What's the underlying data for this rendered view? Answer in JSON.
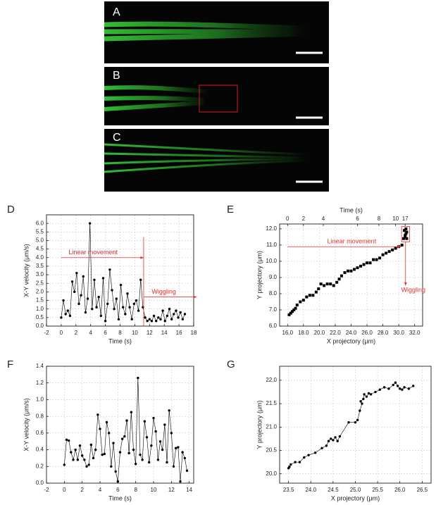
{
  "image_labels": [
    "A",
    "B",
    "C"
  ],
  "chart_data": [
    {
      "type": "line",
      "label": "D",
      "xlabel": "Time (s)",
      "ylabel": "X-Y velocity (μm/s)",
      "color": "#000000",
      "grid": true,
      "x": [
        0,
        0.3,
        0.6,
        0.9,
        1.2,
        1.5,
        1.8,
        2.1,
        2.4,
        2.7,
        3,
        3.3,
        3.6,
        3.9,
        4.2,
        4.5,
        4.8,
        5.1,
        5.4,
        5.7,
        6,
        6.3,
        6.6,
        6.9,
        7.2,
        7.5,
        7.8,
        8.1,
        8.4,
        8.7,
        9,
        9.3,
        9.6,
        9.9,
        10.2,
        10.5,
        10.8,
        11.1,
        11.4,
        11.7,
        12,
        12.3,
        12.6,
        12.9,
        13.2,
        13.5,
        13.8,
        14.1,
        14.4,
        14.7,
        15,
        15.3,
        15.6,
        15.9,
        16.2,
        16.5,
        16.8
      ],
      "values": [
        0.5,
        1.5,
        0.7,
        0.9,
        0.6,
        2.6,
        2.0,
        3.1,
        1.3,
        1.8,
        2.9,
        0.8,
        1.6,
        6.0,
        1.0,
        2.7,
        1.1,
        1.7,
        0.6,
        2.8,
        0.3,
        1.3,
        3.3,
        2.1,
        1.0,
        1.6,
        0.4,
        2.4,
        1.1,
        0.7,
        1.9,
        1.1,
        0.4,
        1.3,
        1.5,
        0.9,
        2.7,
        1.1,
        0.5,
        0.3,
        0.4,
        0.3,
        0.6,
        0.3,
        0.5,
        0.4,
        0.9,
        0.3,
        0.6,
        1.0,
        0.4,
        0.7,
        0.9,
        0.5,
        0.8,
        0.4,
        0.7
      ],
      "xlim": [
        -2,
        18
      ],
      "ylim": [
        0,
        6.5
      ],
      "xticks": [
        -2,
        0,
        2,
        4,
        6,
        8,
        10,
        12,
        14,
        16,
        18
      ],
      "yticks": [
        {
          "value": 0,
          "label": "0.0"
        },
        0.5,
        {
          "value": 1,
          "label": "1.0"
        },
        1.5,
        {
          "value": 2,
          "label": "2.0"
        },
        2.5,
        {
          "value": 3,
          "label": "3.0"
        },
        3.5,
        {
          "value": 4,
          "label": "4.0"
        },
        4.5,
        {
          "value": 5,
          "label": "5.0"
        },
        5.5,
        {
          "value": 6,
          "label": "6.0"
        }
      ],
      "annotations": [
        "Linear movement",
        "Wiggling"
      ]
    },
    {
      "type": "scatter",
      "label": "E",
      "xlabel": "X projectory (μm)",
      "ylabel": "Y projectory (μm)",
      "x2label": "Time (s)",
      "color": "#000000",
      "grid": true,
      "x": [
        16.2,
        16.4,
        16.6,
        16.8,
        17.0,
        17.2,
        17.6,
        18.0,
        18.4,
        18.8,
        19.2,
        19.6,
        19.9,
        20.2,
        20.6,
        21.0,
        21.4,
        21.8,
        22.2,
        22.5,
        22.8,
        23.2,
        23.6,
        24.0,
        24.4,
        24.8,
        25.2,
        25.6,
        26.0,
        26.4,
        26.8,
        27.2,
        27.6,
        28.0,
        28.4,
        28.8,
        29.2,
        29.6,
        30.0,
        30.4,
        30.6,
        30.8,
        30.7,
        30.9,
        31.0,
        30.8,
        30.9,
        31.0
      ],
      "values": [
        6.7,
        6.8,
        6.9,
        7.0,
        7.1,
        7.3,
        7.5,
        7.6,
        7.8,
        7.9,
        7.9,
        8.1,
        8.3,
        8.6,
        8.5,
        8.6,
        8.6,
        8.5,
        8.7,
        8.9,
        9.1,
        9.3,
        9.4,
        9.4,
        9.5,
        9.6,
        9.7,
        9.8,
        9.9,
        9.9,
        10.1,
        10.1,
        10.2,
        10.4,
        10.5,
        10.6,
        10.7,
        10.8,
        10.9,
        11.0,
        11.4,
        11.6,
        11.9,
        12.0,
        11.8,
        11.5,
        11.7,
        11.4
      ],
      "xlim": [
        15,
        33
      ],
      "ylim": [
        6,
        12.3
      ],
      "xticks": [
        {
          "value": 16,
          "label": "16.0"
        },
        {
          "value": 18,
          "label": "18.0"
        },
        {
          "value": 20,
          "label": "20.0"
        },
        {
          "value": 22,
          "label": "22.0"
        },
        {
          "value": 24,
          "label": "24.0"
        },
        {
          "value": 26,
          "label": "26.0"
        },
        {
          "value": 28,
          "label": "28.0"
        },
        {
          "value": 30,
          "label": "30.0"
        },
        {
          "value": 32,
          "label": "32.0"
        }
      ],
      "yticks": [
        {
          "value": 6,
          "label": "6.0"
        },
        {
          "value": 7,
          "label": "7.0"
        },
        {
          "value": 8,
          "label": "8.0"
        },
        {
          "value": 9,
          "label": "9.0"
        },
        {
          "value": 10,
          "label": "10.0"
        },
        {
          "value": 11,
          "label": "11.0"
        },
        {
          "value": 12,
          "label": "12.0"
        }
      ],
      "x2ticks": [
        0,
        2,
        4,
        6,
        8,
        10,
        17
      ],
      "x2tick_positions": [
        16.0,
        18.0,
        20.5,
        24.8,
        27.5,
        29.6,
        30.8
      ],
      "annotations": [
        "Linear movement",
        "Wiggling"
      ]
    },
    {
      "type": "line",
      "label": "F",
      "xlabel": "Time (s)",
      "ylabel": "X-Y velocity (μm/s)",
      "color": "#000000",
      "grid": true,
      "x": [
        0,
        0.25,
        0.5,
        0.75,
        1,
        1.25,
        1.5,
        1.75,
        2,
        2.25,
        2.5,
        2.75,
        3,
        3.25,
        3.5,
        3.75,
        4,
        4.25,
        4.5,
        4.75,
        5,
        5.25,
        5.5,
        5.75,
        6,
        6.25,
        6.5,
        6.75,
        7,
        7.25,
        7.5,
        7.75,
        8,
        8.25,
        8.5,
        8.75,
        9,
        9.25,
        9.5,
        9.75,
        10,
        10.25,
        10.5,
        10.75,
        11,
        11.25,
        11.5,
        11.75,
        12,
        12.25,
        12.5,
        12.75,
        13,
        13.25,
        13.5,
        13.75
      ],
      "values": [
        0.22,
        0.52,
        0.51,
        0.37,
        0.28,
        0.4,
        0.28,
        0.45,
        0.33,
        0.28,
        0.2,
        0.22,
        0.46,
        0.3,
        0.4,
        0.82,
        0.65,
        0.34,
        0.35,
        0.73,
        0.6,
        0.2,
        0.48,
        0.14,
        0.02,
        0.37,
        0.53,
        0.56,
        0.75,
        0.36,
        0.85,
        0.4,
        0.23,
        1.26,
        0.34,
        0.28,
        0.74,
        0.55,
        0.25,
        0.45,
        0.78,
        0.62,
        0.28,
        0.5,
        0.4,
        0.7,
        0.25,
        0.87,
        0.6,
        0.2,
        0.42,
        0.43,
        0.02,
        0.37,
        0.3,
        0.15
      ],
      "xlim": [
        -2,
        14.5
      ],
      "ylim": [
        0,
        1.4
      ],
      "xticks": [
        -2,
        0,
        2,
        4,
        6,
        8,
        10,
        12,
        14
      ],
      "yticks": [
        {
          "value": 0,
          "label": "0.0"
        },
        0.2,
        0.4,
        0.6,
        0.8,
        {
          "value": 1,
          "label": "1.0"
        },
        1.2,
        1.4
      ]
    },
    {
      "type": "line",
      "label": "G",
      "xlabel": "X projectory (μm)",
      "ylabel": "Y projectory (μm)",
      "color": "#000000",
      "grid": true,
      "x": [
        23.5,
        23.52,
        23.55,
        23.65,
        23.75,
        23.85,
        23.95,
        24.1,
        24.25,
        24.35,
        24.4,
        24.45,
        24.5,
        24.55,
        24.6,
        24.65,
        24.85,
        25.0,
        25.05,
        25.1,
        25.15,
        25.12,
        25.18,
        25.2,
        25.25,
        25.3,
        25.35,
        25.45,
        25.55,
        25.65,
        25.75,
        25.85,
        25.9,
        25.95,
        26.0,
        26.05,
        26.1,
        26.2,
        26.3
      ],
      "values": [
        20.12,
        20.15,
        20.2,
        20.25,
        20.25,
        20.35,
        20.4,
        20.45,
        20.55,
        20.6,
        20.7,
        20.75,
        20.72,
        20.78,
        20.7,
        20.8,
        21.1,
        21.1,
        21.15,
        21.35,
        21.5,
        21.55,
        21.6,
        21.7,
        21.65,
        21.72,
        21.7,
        21.75,
        21.8,
        21.85,
        21.82,
        21.9,
        21.95,
        21.88,
        21.82,
        21.8,
        21.85,
        21.82,
        21.88
      ],
      "xlim": [
        23.3,
        26.7
      ],
      "ylim": [
        19.8,
        22.3
      ],
      "xticks": [
        23.5,
        {
          "value": 24,
          "label": "24.0"
        },
        24.5,
        {
          "value": 25,
          "label": "25.0"
        },
        25.5,
        {
          "value": 26,
          "label": "26.0"
        },
        26.5
      ],
      "yticks": [
        {
          "value": 20,
          "label": "20.0"
        },
        20.5,
        {
          "value": 21,
          "label": "21.0"
        },
        21.5,
        {
          "value": 22,
          "label": "22.0"
        }
      ]
    }
  ]
}
